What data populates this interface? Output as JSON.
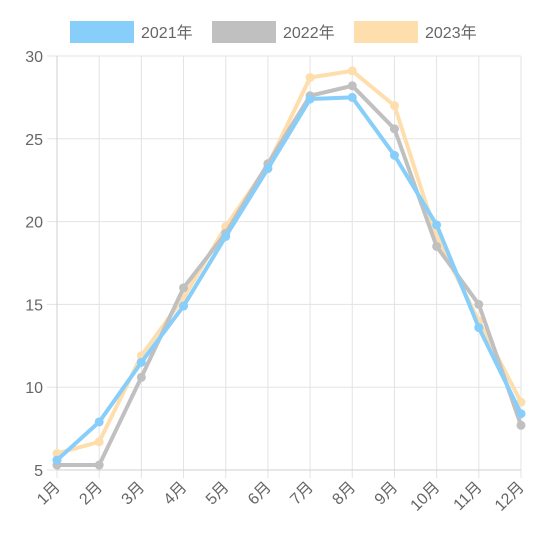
{
  "chart_data": {
    "type": "line",
    "categories": [
      "1月",
      "2月",
      "3月",
      "4月",
      "5月",
      "6月",
      "7月",
      "8月",
      "9月",
      "10月",
      "11月",
      "12月"
    ],
    "series": [
      {
        "name": "2021年",
        "color": "#87CEFA",
        "values": [
          5.6,
          7.9,
          11.5,
          14.9,
          19.1,
          23.2,
          27.4,
          27.5,
          24.0,
          19.8,
          13.6,
          8.4
        ]
      },
      {
        "name": "2022年",
        "color": "#C0C0C0",
        "values": [
          5.3,
          5.3,
          10.6,
          16.0,
          19.3,
          23.5,
          27.6,
          28.2,
          25.6,
          18.5,
          15.0,
          7.7
        ]
      },
      {
        "name": "2023年",
        "color": "#FFDEAD",
        "values": [
          6.0,
          6.7,
          11.9,
          15.4,
          19.7,
          23.4,
          28.7,
          29.1,
          27.0,
          19.1,
          14.0,
          9.1
        ]
      }
    ],
    "yticks": [
      "5",
      "10",
      "15",
      "20",
      "25",
      "30"
    ],
    "ylim": [
      5,
      30
    ],
    "legend_position": "top",
    "grid": true
  }
}
